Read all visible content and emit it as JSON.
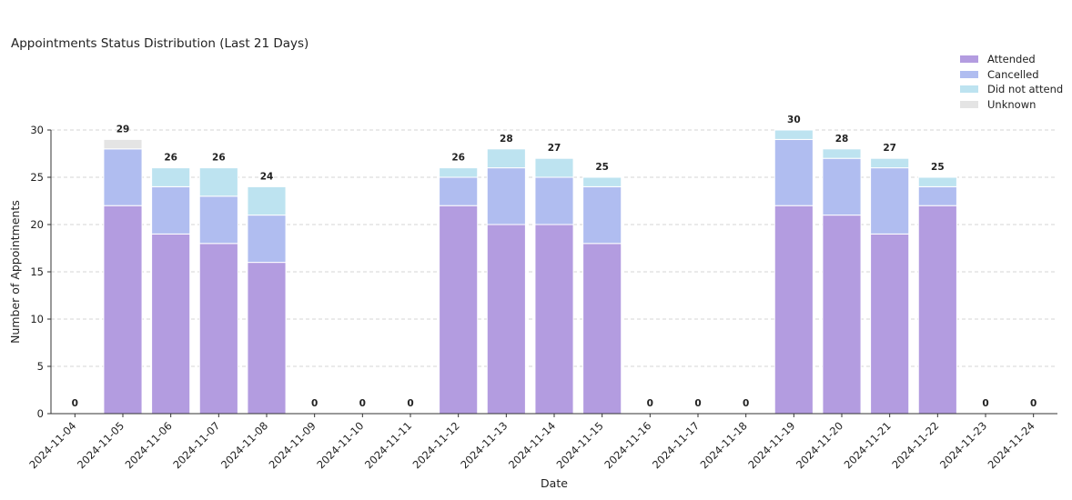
{
  "chart_data": {
    "type": "bar",
    "stacked": true,
    "title": "Appointments Status Distribution (Last 21 Days)",
    "xlabel": "Date",
    "ylabel": "Number of Appointments",
    "ylim": [
      0,
      30
    ],
    "yticks": [
      0,
      5,
      10,
      15,
      20,
      25,
      30
    ],
    "grid": "horizontal dashed",
    "legend_position": "top-right",
    "categories": [
      "2024-11-04",
      "2024-11-05",
      "2024-11-06",
      "2024-11-07",
      "2024-11-08",
      "2024-11-09",
      "2024-11-10",
      "2024-11-11",
      "2024-11-12",
      "2024-11-13",
      "2024-11-14",
      "2024-11-15",
      "2024-11-16",
      "2024-11-17",
      "2024-11-18",
      "2024-11-19",
      "2024-11-20",
      "2024-11-21",
      "2024-11-22",
      "2024-11-23",
      "2024-11-24"
    ],
    "series": [
      {
        "name": "Attended",
        "color": "#b39ce0",
        "values": [
          0,
          22,
          19,
          18,
          16,
          0,
          0,
          0,
          22,
          20,
          20,
          18,
          0,
          0,
          0,
          22,
          21,
          19,
          22,
          0,
          0
        ]
      },
      {
        "name": "Cancelled",
        "color": "#b0bdf0",
        "values": [
          0,
          6,
          5,
          5,
          5,
          0,
          0,
          0,
          3,
          6,
          5,
          6,
          0,
          0,
          0,
          7,
          6,
          7,
          2,
          0,
          0
        ]
      },
      {
        "name": "Did not attend",
        "color": "#bde3f0",
        "values": [
          0,
          0,
          2,
          3,
          3,
          0,
          0,
          0,
          1,
          2,
          2,
          1,
          0,
          0,
          0,
          1,
          1,
          1,
          1,
          0,
          0
        ]
      },
      {
        "name": "Unknown",
        "color": "#e4e4e4",
        "values": [
          0,
          1,
          0,
          0,
          0,
          0,
          0,
          0,
          0,
          0,
          0,
          0,
          0,
          0,
          0,
          0,
          0,
          0,
          0,
          0,
          0
        ]
      }
    ],
    "totals": [
      0,
      29,
      26,
      26,
      24,
      0,
      0,
      0,
      26,
      28,
      27,
      25,
      0,
      0,
      0,
      30,
      28,
      27,
      25,
      0,
      0
    ]
  }
}
